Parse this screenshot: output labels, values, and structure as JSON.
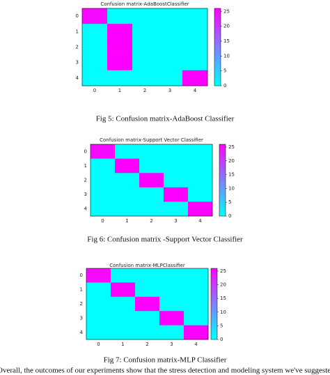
{
  "figures": [
    {
      "chart_data": {
        "type": "heatmap",
        "title": "Confusion matrix-AdaBoostClassifier",
        "x_labels": [
          "0",
          "1",
          "2",
          "3",
          "4"
        ],
        "y_labels": [
          "0",
          "1",
          "2",
          "3",
          "4"
        ],
        "values": [
          [
            25,
            0,
            0,
            0,
            0
          ],
          [
            0,
            26,
            0,
            0,
            0
          ],
          [
            0,
            26,
            0,
            0,
            0
          ],
          [
            0,
            26,
            0,
            0,
            0
          ],
          [
            0,
            0,
            0,
            0,
            26
          ]
        ],
        "colormap": "cool",
        "clim": [
          0,
          26
        ],
        "cticks": [
          0,
          5,
          10,
          15,
          20,
          25
        ]
      },
      "caption": "Fig 5: Confusion matrix-AdaBoost Classifier"
    },
    {
      "chart_data": {
        "type": "heatmap",
        "title": "Confusion matrix-Support Vector Classifier",
        "x_labels": [
          "0",
          "1",
          "2",
          "3",
          "4"
        ],
        "y_labels": [
          "0",
          "1",
          "2",
          "3",
          "4"
        ],
        "values": [
          [
            25,
            0,
            0,
            0,
            0
          ],
          [
            0,
            26,
            0,
            0,
            0
          ],
          [
            0,
            0,
            26,
            0,
            0
          ],
          [
            0,
            0,
            0,
            26,
            0
          ],
          [
            0,
            0,
            0,
            0,
            26
          ]
        ],
        "colormap": "cool",
        "clim": [
          0,
          26
        ],
        "cticks": [
          0,
          5,
          10,
          15,
          20,
          25
        ]
      },
      "caption": "Fig 6: Confusion matrix -Support Vector Classifier"
    },
    {
      "chart_data": {
        "type": "heatmap",
        "title": "Confusion matrix-MLPClassifier",
        "x_labels": [
          "0",
          "1",
          "2",
          "3",
          "4"
        ],
        "y_labels": [
          "0",
          "1",
          "2",
          "3",
          "4"
        ],
        "values": [
          [
            25,
            0,
            0,
            0,
            0
          ],
          [
            0,
            26,
            0,
            0,
            0
          ],
          [
            0,
            0,
            26,
            0,
            0
          ],
          [
            0,
            0,
            0,
            26,
            0
          ],
          [
            0,
            0,
            0,
            0,
            26
          ]
        ],
        "colormap": "cool",
        "clim": [
          0,
          26
        ],
        "cticks": [
          0,
          5,
          10,
          15,
          20,
          25
        ]
      },
      "caption": "Fig 7: Confusion matrix-MLP Classifier"
    }
  ],
  "body_text": "Overall, the outcomes of our experiments show that the stress detection and modeling system we've suggested"
}
